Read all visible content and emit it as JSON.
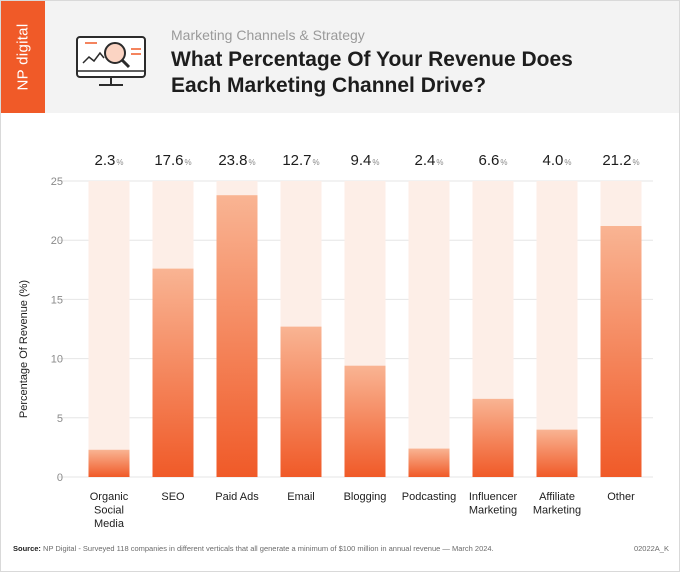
{
  "header": {
    "brand": "NP digital",
    "subtitle": "Marketing Channels & Strategy",
    "title_line1": "What Percentage Of Your Revenue Does",
    "title_line2": "Each Marketing Channel Drive?"
  },
  "colors": {
    "accent": "#f05a28",
    "bar_top": "#f9b493",
    "bar_bottom": "#f05a28",
    "track": "#fdeee7",
    "grid": "#e6e6e6"
  },
  "chart_data": {
    "type": "bar",
    "title": "What Percentage Of Your Revenue Does Each Marketing Channel Drive?",
    "xlabel": "",
    "ylabel": "Percentage Of Revenue (%)",
    "ylim": [
      0,
      25
    ],
    "yticks": [
      "0",
      "5",
      "10",
      "15",
      "20",
      "25"
    ],
    "value_suffix": "%",
    "categories": [
      [
        "Organic",
        "Social",
        "Media"
      ],
      [
        "SEO"
      ],
      [
        "Paid Ads"
      ],
      [
        "Email"
      ],
      [
        "Blogging"
      ],
      [
        "Podcasting"
      ],
      [
        "Influencer",
        "Marketing"
      ],
      [
        "Affiliate",
        "Marketing"
      ],
      [
        "Other"
      ]
    ],
    "values": [
      2.3,
      17.6,
      23.8,
      12.7,
      9.4,
      2.4,
      6.6,
      4.0,
      21.2
    ],
    "value_labels": [
      "2.3",
      "17.6",
      "23.8",
      "12.7",
      "9.4",
      "2.4",
      "6.6",
      "4.0",
      "21.2"
    ],
    "grid": true
  },
  "footer": {
    "source_label": "Source:",
    "source_text": " NP Digital - Surveyed 118 companies in different verticals that all generate a minimum of $100 million in annual revenue — March 2024.",
    "code": "02022A_K"
  }
}
